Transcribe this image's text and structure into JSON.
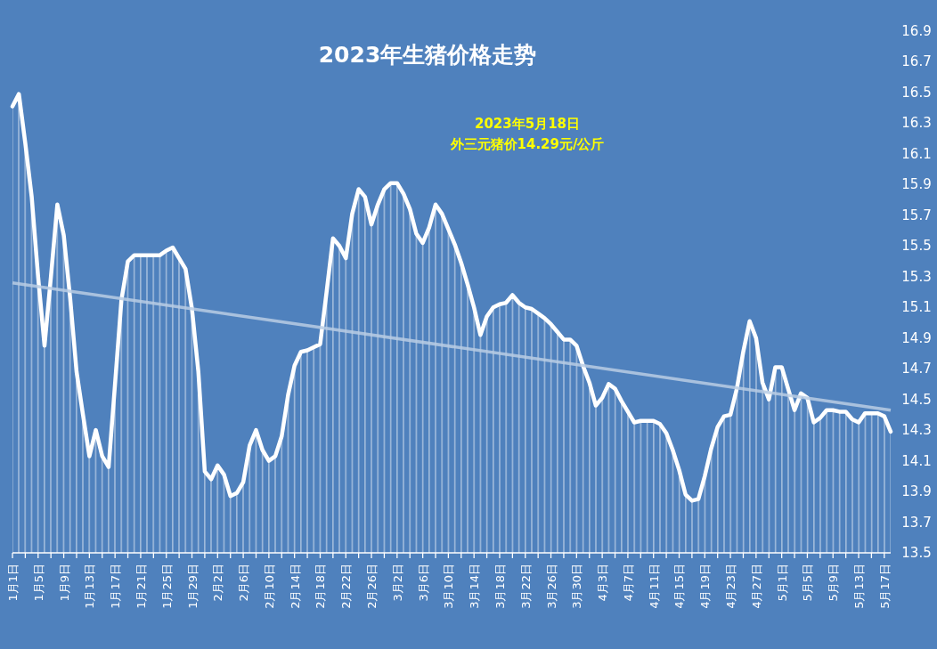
{
  "chart_data": {
    "type": "area",
    "title": "2023年生猪价格走势",
    "annotations": [
      "2023年5月18日",
      "外三元猪价14.29元/公斤"
    ],
    "x": [
      "--01-01",
      "--01-02",
      "--01-03",
      "--01-04",
      "--01-05",
      "--01-06",
      "--01-07",
      "--01-08",
      "--01-09",
      "--01-10",
      "--01-11",
      "--01-12",
      "--01-13",
      "--01-14",
      "--01-15",
      "--01-16",
      "--01-17",
      "--01-18",
      "--01-19",
      "--01-20",
      "--01-21",
      "--01-22",
      "--01-23",
      "--01-24",
      "--01-25",
      "--01-26",
      "--01-27",
      "--01-28",
      "--01-29",
      "--01-30",
      "--01-31",
      "--02-01",
      "--02-02",
      "--02-03",
      "--02-04",
      "--02-05",
      "--02-06",
      "--02-07",
      "--02-08",
      "--02-09",
      "--02-10",
      "--02-11",
      "--02-12",
      "--02-13",
      "--02-14",
      "--02-15",
      "--02-16",
      "--02-17",
      "--02-18",
      "--02-19",
      "--02-20",
      "--02-21",
      "--02-22",
      "--02-23",
      "--02-24",
      "--02-25",
      "--02-26",
      "--02-27",
      "--02-28",
      "--03-01",
      "--03-02",
      "--03-03",
      "--03-04",
      "--03-05",
      "--03-06",
      "--03-07",
      "--03-08",
      "--03-09",
      "--03-10",
      "--03-11",
      "--03-12",
      "--03-13",
      "--03-14",
      "--03-15",
      "--03-16",
      "--03-17",
      "--03-18",
      "--03-19",
      "--03-20",
      "--03-21",
      "--03-22",
      "--03-23",
      "--03-24",
      "--03-25",
      "--03-26",
      "--03-27",
      "--03-28",
      "--03-29",
      "--03-30",
      "--03-31",
      "--04-01",
      "--04-02",
      "--04-03",
      "--04-04",
      "--04-05",
      "--04-06",
      "--04-07",
      "--04-08",
      "--04-09",
      "--04-10",
      "--04-11",
      "--04-12",
      "--04-13",
      "--04-14",
      "--04-15",
      "--04-16",
      "--04-17",
      "--04-18",
      "--04-19",
      "--04-20",
      "--04-21",
      "--04-22",
      "--04-23",
      "--04-24",
      "--04-25",
      "--04-26",
      "--04-27",
      "--04-28",
      "--04-29",
      "--04-30",
      "--05-01",
      "--05-02",
      "--05-03",
      "--05-04",
      "--05-05",
      "--05-06",
      "--05-07",
      "--05-08",
      "--05-09",
      "--05-10",
      "--05-11",
      "--05-12",
      "--05-13",
      "--05-14",
      "--05-15",
      "--05-16",
      "--05-17",
      "--05-18"
    ],
    "series": [
      {
        "color": "#ffffff",
        "values": [
          16.41,
          16.49,
          16.17,
          15.82,
          15.3,
          14.85,
          15.3,
          15.77,
          15.57,
          15.16,
          14.68,
          14.4,
          14.13,
          14.3,
          14.13,
          14.06,
          14.6,
          15.15,
          15.4,
          15.44,
          15.44,
          15.44,
          15.44,
          15.44,
          15.47,
          15.49,
          15.42,
          15.35,
          15.09,
          14.68,
          14.03,
          13.98,
          14.07,
          14.01,
          13.87,
          13.89,
          13.96,
          14.2,
          14.3,
          14.17,
          14.1,
          14.13,
          14.26,
          14.53,
          14.72,
          14.81,
          14.82,
          14.84,
          14.86,
          15.2,
          15.55,
          15.5,
          15.42,
          15.71,
          15.87,
          15.82,
          15.64,
          15.77,
          15.87,
          15.91,
          15.91,
          15.84,
          15.74,
          15.58,
          15.52,
          15.62,
          15.77,
          15.71,
          15.61,
          15.51,
          15.39,
          15.25,
          15.1,
          14.92,
          15.04,
          15.1,
          15.12,
          15.13,
          15.18,
          15.13,
          15.1,
          15.09,
          15.06,
          15.03,
          14.99,
          14.94,
          14.89,
          14.89,
          14.85,
          14.72,
          14.61,
          14.46,
          14.51,
          14.6,
          14.57,
          14.49,
          14.42,
          14.35,
          14.36,
          14.36,
          14.36,
          14.34,
          14.28,
          14.17,
          14.04,
          13.88,
          13.84,
          13.85,
          14.0,
          14.18,
          14.32,
          14.39,
          14.4,
          14.57,
          14.81,
          15.01,
          14.9,
          14.61,
          14.5,
          14.71,
          14.71,
          14.57,
          14.43,
          14.54,
          14.51,
          14.35,
          14.38,
          14.43,
          14.43,
          14.42,
          14.42,
          14.37,
          14.35,
          14.41,
          14.41,
          14.41,
          14.39,
          14.29
        ]
      },
      {
        "type": "line",
        "color": "#b8cce4",
        "x": [
          "--01-01",
          "--05-18"
        ],
        "values": [
          15.26,
          14.43
        ]
      }
    ],
    "xlim": [
      "--01-01",
      "--05-18"
    ],
    "xticks": [
      {
        "value": "--01-01",
        "label": "1月1日"
      },
      {
        "value": "--01-03",
        "label": null
      },
      {
        "value": "--01-05",
        "label": "1月5日"
      },
      {
        "value": "--01-07",
        "label": null
      },
      {
        "value": "--01-09",
        "label": "1月9日"
      },
      {
        "value": "--01-11",
        "label": null
      },
      {
        "value": "--01-13",
        "label": "1月13日"
      },
      {
        "value": "--01-15",
        "label": null
      },
      {
        "value": "--01-17",
        "label": "1月17日"
      },
      {
        "value": "--01-19",
        "label": null
      },
      {
        "value": "--01-21",
        "label": "1月21日"
      },
      {
        "value": "--01-23",
        "label": null
      },
      {
        "value": "--01-25",
        "label": "1月25日"
      },
      {
        "value": "--01-27",
        "label": null
      },
      {
        "value": "--01-29",
        "label": "1月29日"
      },
      {
        "value": "--01-31",
        "label": null
      },
      {
        "value": "--02-02",
        "label": "2月2日"
      },
      {
        "value": "--02-04",
        "label": null
      },
      {
        "value": "--02-06",
        "label": "2月6日"
      },
      {
        "value": "--02-08",
        "label": null
      },
      {
        "value": "--02-10",
        "label": "2月10日"
      },
      {
        "value": "--02-12",
        "label": null
      },
      {
        "value": "--02-14",
        "label": "2月14日"
      },
      {
        "value": "--02-16",
        "label": null
      },
      {
        "value": "--02-18",
        "label": "2月18日"
      },
      {
        "value": "--02-20",
        "label": null
      },
      {
        "value": "--02-22",
        "label": "2月22日"
      },
      {
        "value": "--02-24",
        "label": null
      },
      {
        "value": "--02-26",
        "label": "2月26日"
      },
      {
        "value": "--02-28",
        "label": null
      },
      {
        "value": "--03-02",
        "label": "3月2日"
      },
      {
        "value": "--03-04",
        "label": null
      },
      {
        "value": "--03-06",
        "label": "3月6日"
      },
      {
        "value": "--03-08",
        "label": null
      },
      {
        "value": "--03-10",
        "label": "3月10日"
      },
      {
        "value": "--03-12",
        "label": null
      },
      {
        "value": "--03-14",
        "label": "3月14日"
      },
      {
        "value": "--03-16",
        "label": null
      },
      {
        "value": "--03-18",
        "label": "3月18日"
      },
      {
        "value": "--03-20",
        "label": null
      },
      {
        "value": "--03-22",
        "label": "3月22日"
      },
      {
        "value": "--03-24",
        "label": null
      },
      {
        "value": "--03-26",
        "label": "3月26日"
      },
      {
        "value": "--03-28",
        "label": null
      },
      {
        "value": "--03-30",
        "label": "3月30日"
      },
      {
        "value": "--04-01",
        "label": null
      },
      {
        "value": "--04-03",
        "label": "4月3日"
      },
      {
        "value": "--04-05",
        "label": null
      },
      {
        "value": "--04-07",
        "label": "4月7日"
      },
      {
        "value": "--04-09",
        "label": null
      },
      {
        "value": "--04-11",
        "label": "4月11日"
      },
      {
        "value": "--04-13",
        "label": null
      },
      {
        "value": "--04-15",
        "label": "4月15日"
      },
      {
        "value": "--04-17",
        "label": null
      },
      {
        "value": "--04-19",
        "label": "4月19日"
      },
      {
        "value": "--04-21",
        "label": null
      },
      {
        "value": "--04-23",
        "label": "4月23日"
      },
      {
        "value": "--04-25",
        "label": null
      },
      {
        "value": "--04-27",
        "label": "4月27日"
      },
      {
        "value": "--04-29",
        "label": null
      },
      {
        "value": "--05-01",
        "label": "5月1日"
      },
      {
        "value": "--05-03",
        "label": null
      },
      {
        "value": "--05-05",
        "label": "5月5日"
      },
      {
        "value": "--05-07",
        "label": null
      },
      {
        "value": "--05-09",
        "label": "5月9日"
      },
      {
        "value": "--05-11",
        "label": null
      },
      {
        "value": "--05-13",
        "label": "5月13日"
      },
      {
        "value": "--05-15",
        "label": null
      },
      {
        "value": "--05-17",
        "label": "5月17日"
      }
    ],
    "ylim": [
      13.5,
      16.9
    ],
    "yticks": [
      13.5,
      13.7,
      13.9,
      14.1,
      14.3,
      14.5,
      14.7,
      14.9,
      15.1,
      15.3,
      15.5,
      15.7,
      15.9,
      16.1,
      16.3,
      16.5,
      16.7,
      16.9
    ]
  }
}
